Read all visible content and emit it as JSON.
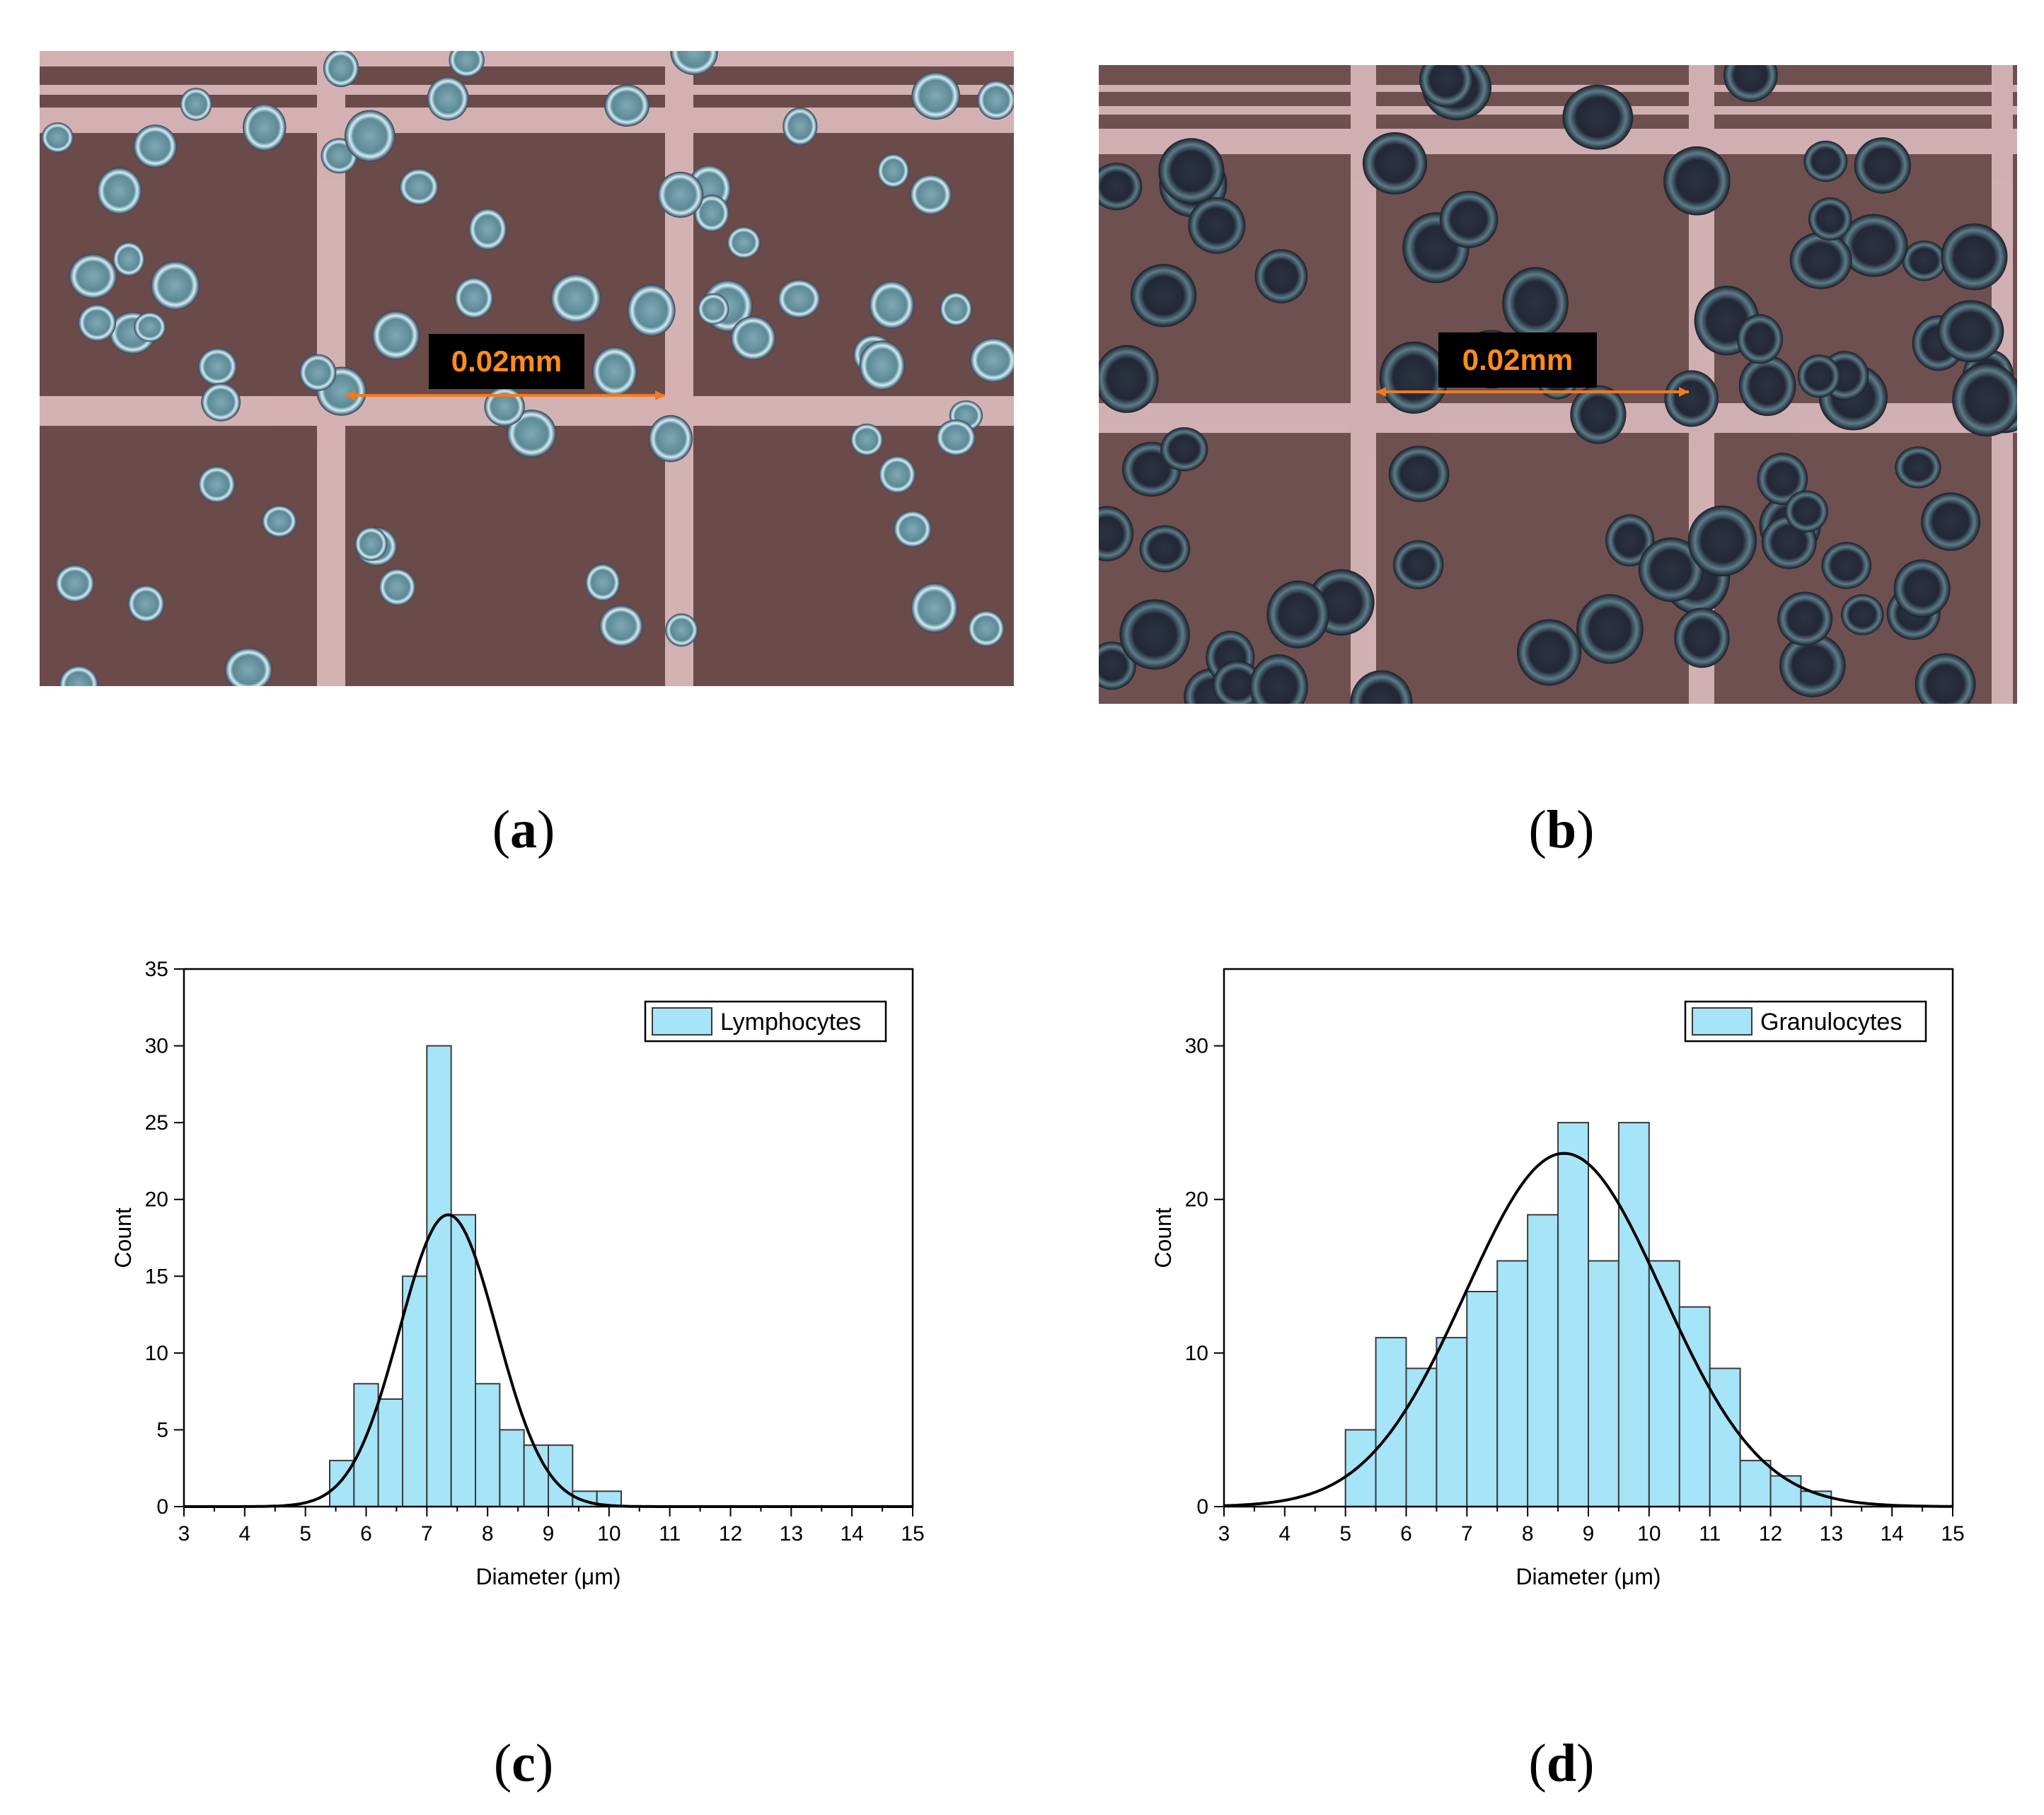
{
  "colors": {
    "bar_fill": "#a6e4f7",
    "bar_stroke": "#3a3a3a",
    "curve": "#000000",
    "scale_text": "#ff8c1a",
    "scale_arrow": "#f07a20"
  },
  "panels": {
    "a": {
      "caption_open": "(",
      "caption_letter": "a",
      "caption_close": ")",
      "scale_label": "0.02mm",
      "image_description_icon": "microscope-image-lymphocytes"
    },
    "b": {
      "caption_open": "(",
      "caption_letter": "b",
      "caption_close": ")",
      "scale_label": "0.02mm",
      "image_description_icon": "microscope-image-granulocytes"
    },
    "c": {
      "caption_open": "(",
      "caption_letter": "c",
      "caption_close": ")"
    },
    "d": {
      "caption_open": "(",
      "caption_letter": "d",
      "caption_close": ")"
    }
  },
  "chart_data": [
    {
      "type": "bar",
      "panel": "c",
      "title": "",
      "legend": "Lymphocytes",
      "legend_position": "top-right",
      "xlabel": "Diameter (μm)",
      "ylabel": "Count",
      "xlim": [
        3,
        15
      ],
      "ylim": [
        0,
        35
      ],
      "xticks": [
        3,
        4,
        5,
        6,
        7,
        8,
        9,
        10,
        11,
        12,
        13,
        14,
        15
      ],
      "yticks": [
        0,
        5,
        10,
        15,
        20,
        25,
        30,
        35
      ],
      "bin_width": 0.4,
      "bin_starts": [
        5.4,
        5.8,
        6.2,
        6.6,
        7.0,
        7.4,
        7.8,
        8.2,
        8.6,
        9.0,
        9.4,
        9.8
      ],
      "values": [
        3,
        8,
        7,
        15,
        30,
        19,
        8,
        5,
        4,
        4,
        1,
        1
      ],
      "fit": {
        "type": "normal",
        "mean": 7.35,
        "sd": 0.8,
        "peak": 19
      }
    },
    {
      "type": "bar",
      "panel": "d",
      "title": "",
      "legend": "Granulocytes",
      "legend_position": "top-right",
      "xlabel": "Diameter (μm)",
      "ylabel": "Count",
      "xlim": [
        3,
        15
      ],
      "ylim": [
        0,
        35
      ],
      "xticks": [
        3,
        4,
        5,
        6,
        7,
        8,
        9,
        10,
        11,
        12,
        13,
        14,
        15
      ],
      "yticks": [
        0,
        10,
        20,
        30
      ],
      "bin_width": 0.5,
      "bin_starts": [
        5.0,
        5.5,
        6.0,
        6.5,
        7.0,
        7.5,
        8.0,
        8.5,
        9.0,
        9.5,
        10.0,
        10.5,
        11.0,
        11.5,
        12.0,
        12.5
      ],
      "values": [
        5,
        11,
        9,
        11,
        14,
        16,
        19,
        25,
        16,
        25,
        16,
        13,
        9,
        3,
        2,
        1
      ],
      "fit": {
        "type": "normal",
        "mean": 8.6,
        "sd": 1.62,
        "peak": 23
      }
    }
  ]
}
